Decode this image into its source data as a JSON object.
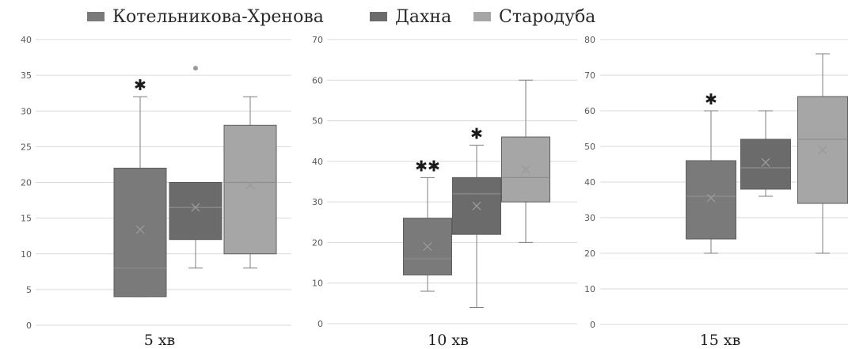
{
  "legend": [
    {
      "label": "Котельникова-Хренова",
      "color": "#7a7a7a"
    },
    {
      "label": "Дахна",
      "color": "#6b6b6b"
    },
    {
      "label": "Стародуба",
      "color": "#a6a6a6"
    }
  ],
  "colors": {
    "median": "#8e8e8e",
    "whisker": "#7f7f7f",
    "grid": "#d9d9d9",
    "mean": "#9a9a9a"
  },
  "chart_data": [
    {
      "type": "boxplot",
      "xlabel": "5 хв",
      "ylim": [
        0,
        40
      ],
      "yticks": [
        0,
        5,
        10,
        15,
        20,
        25,
        30,
        35,
        40
      ],
      "grid": true,
      "series": [
        {
          "name": "Котельникова-Хренова",
          "min": 4,
          "q1": 4,
          "median": 8,
          "q3": 22,
          "max": 32,
          "mean": 13.4,
          "outliers": [],
          "annotation": "*"
        },
        {
          "name": "Дахна",
          "min": 8,
          "q1": 12,
          "median": 16.5,
          "q3": 20,
          "max": 20,
          "mean": 16.5,
          "outliers": [
            36
          ],
          "annotation": ""
        },
        {
          "name": "Стародуба",
          "min": 8,
          "q1": 10,
          "median": 20,
          "q3": 28,
          "max": 32,
          "mean": 19.6,
          "outliers": [],
          "annotation": ""
        }
      ]
    },
    {
      "type": "boxplot",
      "xlabel": "10 хв",
      "ylim": [
        0,
        70
      ],
      "yticks": [
        0,
        10,
        20,
        30,
        40,
        50,
        60,
        70
      ],
      "grid": true,
      "series": [
        {
          "name": "Котельникова-Хренова",
          "min": 8,
          "q1": 12,
          "median": 16,
          "q3": 26,
          "max": 36,
          "mean": 19,
          "outliers": [],
          "annotation": "**"
        },
        {
          "name": "Дахна",
          "min": 4,
          "q1": 22,
          "median": 32,
          "q3": 36,
          "max": 44,
          "mean": 29,
          "outliers": [],
          "annotation": "*"
        },
        {
          "name": "Стародуба",
          "min": 20,
          "q1": 30,
          "median": 36,
          "q3": 46,
          "max": 60,
          "mean": 38,
          "outliers": [],
          "annotation": ""
        }
      ]
    },
    {
      "type": "boxplot",
      "xlabel": "15 хв",
      "ylim": [
        0,
        80
      ],
      "yticks": [
        0,
        10,
        20,
        30,
        40,
        50,
        60,
        70,
        80
      ],
      "grid": true,
      "series": [
        {
          "name": "Котельникова-Хренова",
          "min": 20,
          "q1": 24,
          "median": 36,
          "q3": 46,
          "max": 60,
          "mean": 35.5,
          "outliers": [],
          "annotation": "*"
        },
        {
          "name": "Дахна",
          "min": 36,
          "q1": 38,
          "median": 44,
          "q3": 52,
          "max": 60,
          "mean": 45.5,
          "outliers": [],
          "annotation": ""
        },
        {
          "name": "Стародуба",
          "min": 20,
          "q1": 34,
          "median": 52,
          "q3": 64,
          "max": 76,
          "mean": 49,
          "outliers": [],
          "annotation": ""
        }
      ]
    }
  ]
}
